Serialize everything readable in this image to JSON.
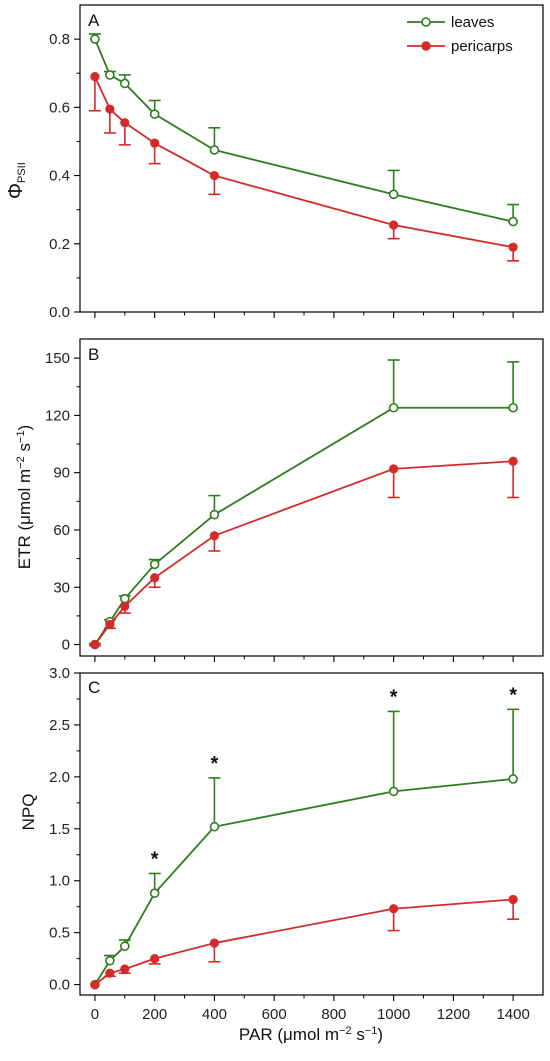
{
  "chart_data": [
    {
      "type": "line",
      "panel": "A",
      "x": [
        0,
        50,
        100,
        200,
        400,
        1000,
        1400
      ],
      "series": [
        {
          "name": "leaves",
          "values": [
            0.8,
            0.695,
            0.67,
            0.58,
            0.475,
            0.345,
            0.265
          ],
          "errors": [
            0.015,
            0.01,
            0.025,
            0.04,
            0.065,
            0.07,
            0.05
          ],
          "error_dir": "up",
          "color": "#2e7d1e",
          "marker": "open-circle"
        },
        {
          "name": "pericarps",
          "values": [
            0.69,
            0.595,
            0.555,
            0.495,
            0.4,
            0.255,
            0.19
          ],
          "errors": [
            0.1,
            0.07,
            0.065,
            0.06,
            0.055,
            0.04,
            0.04
          ],
          "error_dir": "down",
          "color": "#d42a2a",
          "marker": "filled-circle"
        }
      ],
      "xlim": [
        -50,
        1500
      ],
      "ylim": [
        0.0,
        0.9
      ],
      "yticks": [
        "0.0",
        "0.2",
        "0.4",
        "0.6",
        "0.8"
      ],
      "ylabel_main": "Φ",
      "ylabel_sub": "PSII",
      "legend": "top-right"
    },
    {
      "type": "line",
      "panel": "B",
      "x": [
        0,
        50,
        100,
        200,
        400,
        1000,
        1400
      ],
      "series": [
        {
          "name": "leaves",
          "values": [
            0,
            12,
            24,
            42,
            68,
            124,
            124
          ],
          "errors": [
            0.5,
            1,
            1.5,
            2.5,
            10,
            25,
            24
          ],
          "error_dir": "up",
          "color": "#2e7d1e",
          "marker": "open-circle"
        },
        {
          "name": "pericarps",
          "values": [
            0,
            10.5,
            20,
            35,
            57,
            92,
            96
          ],
          "errors": [
            0.5,
            2,
            3.5,
            5,
            8,
            15,
            19
          ],
          "error_dir": "down",
          "color": "#d42a2a",
          "marker": "filled-circle"
        }
      ],
      "xlim": [
        -50,
        1500
      ],
      "ylim": [
        -6,
        160
      ],
      "yticks": [
        "0",
        "30",
        "60",
        "90",
        "120",
        "150"
      ],
      "ylabel_pre": "ETR (μmol m",
      "ylabel_sup1": "−2",
      "ylabel_mid": " s",
      "ylabel_sup2": "−1",
      "ylabel_post": ")"
    },
    {
      "type": "line",
      "panel": "C",
      "x": [
        0,
        50,
        100,
        200,
        400,
        1000,
        1400
      ],
      "series": [
        {
          "name": "leaves",
          "values": [
            0,
            0.23,
            0.37,
            0.88,
            1.52,
            1.86,
            1.98
          ],
          "errors": [
            0,
            0.05,
            0.06,
            0.19,
            0.47,
            0.77,
            0.67
          ],
          "error_dir": "up",
          "color": "#2e7d1e",
          "marker": "open-circle"
        },
        {
          "name": "pericarps",
          "values": [
            0,
            0.11,
            0.15,
            0.25,
            0.4,
            0.73,
            0.82
          ],
          "errors": [
            0,
            0.03,
            0.04,
            0.05,
            0.18,
            0.21,
            0.19
          ],
          "error_dir": "down",
          "color": "#d42a2a",
          "marker": "filled-circle"
        }
      ],
      "significance": [
        {
          "x": 200,
          "label": "*"
        },
        {
          "x": 400,
          "label": "*"
        },
        {
          "x": 1000,
          "label": "*"
        },
        {
          "x": 1400,
          "label": "*"
        }
      ],
      "xlim": [
        -50,
        1500
      ],
      "ylim": [
        -0.1,
        3.0
      ],
      "yticks": [
        "0.0",
        "0.5",
        "1.0",
        "1.5",
        "2.0",
        "2.5",
        "3.0"
      ],
      "xticks": [
        "0",
        "200",
        "400",
        "600",
        "800",
        "1000",
        "1200",
        "1400"
      ],
      "ylabel": "NPQ",
      "xlabel_pre": "PAR (μmol m",
      "xlabel_sup1": "−2",
      "xlabel_mid": " s",
      "xlabel_sup2": "−1",
      "xlabel_post": ")"
    }
  ]
}
